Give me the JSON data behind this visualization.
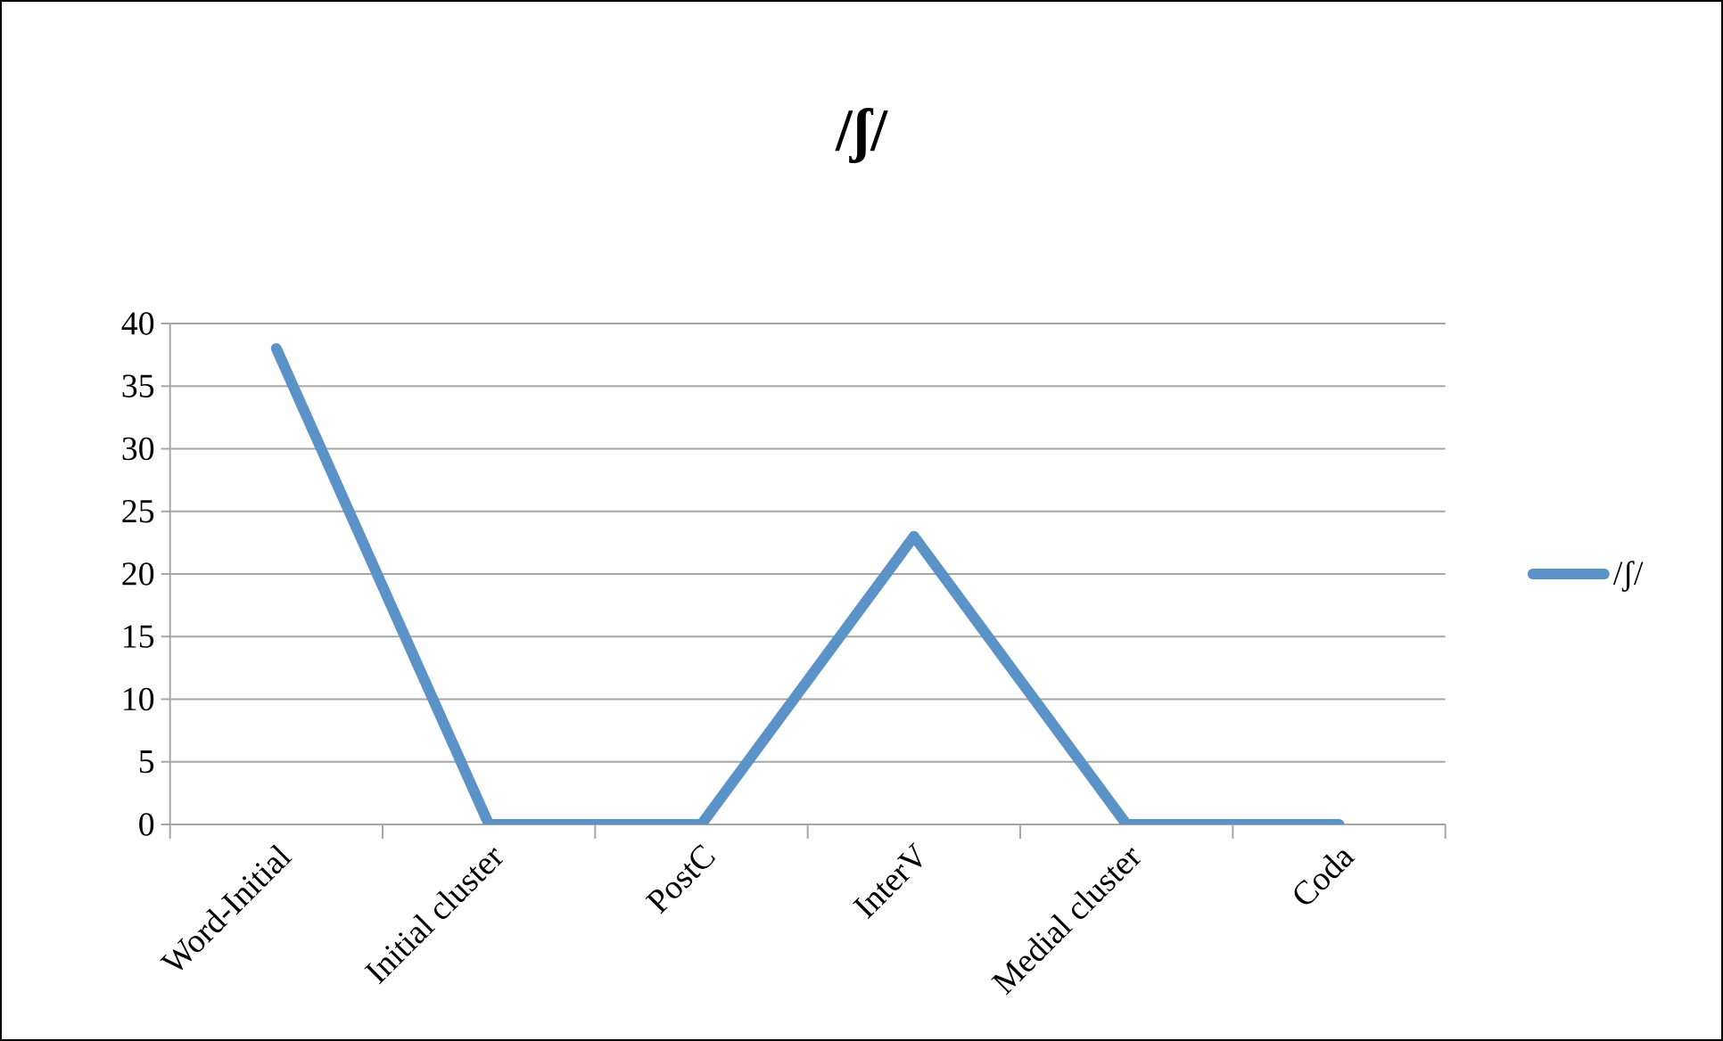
{
  "chart_data": {
    "type": "line",
    "title": "/ʃ/",
    "categories": [
      "Word-Initial",
      "Initial cluster",
      "PostC",
      "InterV",
      "Medial cluster",
      "Coda"
    ],
    "series": [
      {
        "name": "/ʃ/",
        "color": "#5b92c8",
        "values": [
          38,
          0,
          0,
          23,
          0,
          0
        ]
      }
    ],
    "ylim": [
      0,
      40
    ],
    "yticks": [
      0,
      5,
      10,
      15,
      20,
      25,
      30,
      35,
      40
    ],
    "grid": "y",
    "legend": "right",
    "marker": "none",
    "line_style": "solid"
  }
}
